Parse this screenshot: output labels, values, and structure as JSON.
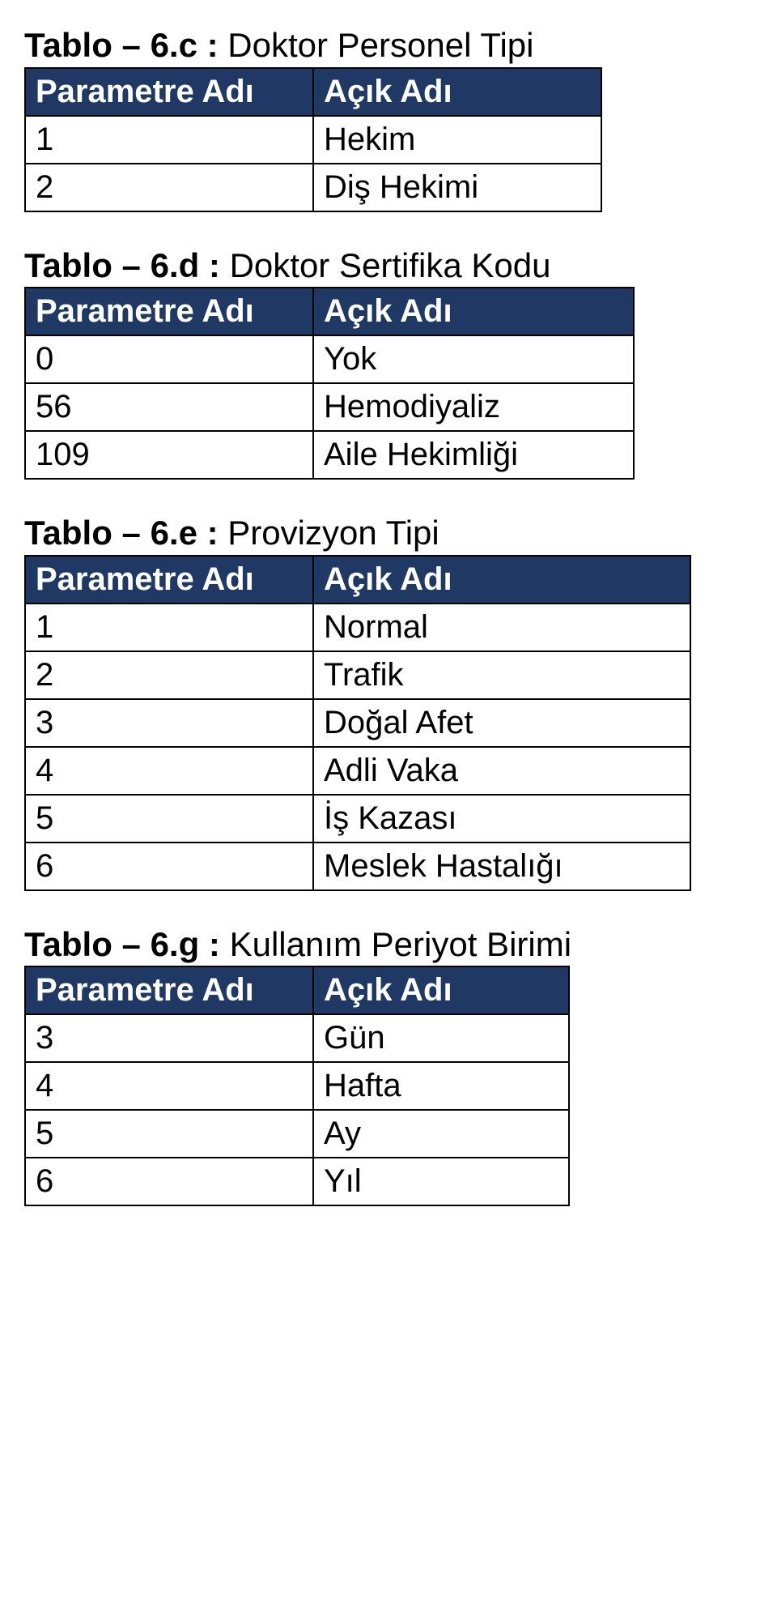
{
  "header_bg": "#1f3864",
  "header_fg": "#ffffff",
  "border_color": "#000000",
  "tables": {
    "c": {
      "caption_bold": "Tablo – 6.c :",
      "caption_rest": "  Doktor Personel Tipi",
      "col1": "Parametre Adı",
      "col2": "Açık Adı",
      "rows": [
        {
          "p": "1",
          "v": "Hekim"
        },
        {
          "p": "2",
          "v": "Diş Hekimi"
        }
      ]
    },
    "d": {
      "caption_bold": "Tablo – 6.d :",
      "caption_rest": "  Doktor Sertifika Kodu",
      "col1": "Parametre Adı",
      "col2": "Açık Adı",
      "rows": [
        {
          "p": "0",
          "v": "Yok"
        },
        {
          "p": "56",
          "v": "Hemodiyaliz"
        },
        {
          "p": "109",
          "v": "Aile Hekimliği"
        }
      ]
    },
    "e": {
      "caption_bold": "Tablo – 6.e :",
      "caption_rest": "  Provizyon Tipi",
      "col1": "Parametre Adı",
      "col2": "Açık Adı",
      "rows": [
        {
          "p": "1",
          "v": "Normal"
        },
        {
          "p": "2",
          "v": "Trafik"
        },
        {
          "p": "3",
          "v": "Doğal Afet"
        },
        {
          "p": "4",
          "v": "Adli Vaka"
        },
        {
          "p": "5",
          "v": "İş Kazası"
        },
        {
          "p": "6",
          "v": "Meslek Hastalığı"
        }
      ]
    },
    "g": {
      "caption_bold": "Tablo – 6.g :",
      "caption_rest": "  Kullanım Periyot Birimi",
      "col1": "Parametre Adı",
      "col2": "Açık Adı",
      "rows": [
        {
          "p": "3",
          "v": "Gün"
        },
        {
          "p": "4",
          "v": "Hafta"
        },
        {
          "p": "5",
          "v": "Ay"
        },
        {
          "p": "6",
          "v": "Yıl"
        }
      ]
    }
  }
}
